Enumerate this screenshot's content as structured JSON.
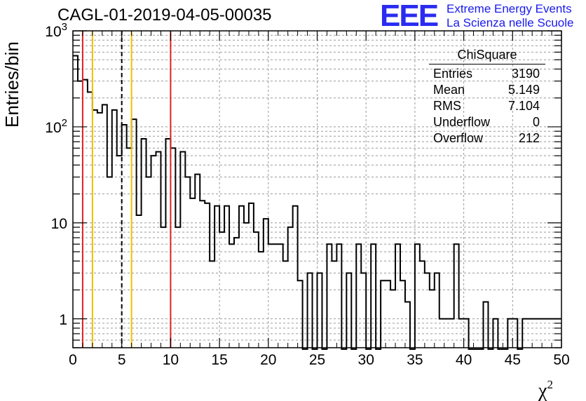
{
  "chart_data": {
    "type": "histogram",
    "title": "CAGL-01-2019-04-05-00035",
    "ylabel": "Entries/bin",
    "xlabel": "χ",
    "xlabel_sup": "2",
    "xlim": [
      0,
      50
    ],
    "ylim": [
      0.5,
      1000
    ],
    "y_scale": "log",
    "grid": true,
    "bin_width": 0.5,
    "bin_start": 0,
    "x_ticks": [
      "0",
      "5",
      "10",
      "15",
      "20",
      "25",
      "30",
      "35",
      "40",
      "45",
      "50"
    ],
    "y_ticks": [
      "1",
      "10",
      "10²",
      "10³"
    ],
    "values": [
      550,
      300,
      310,
      230,
      150,
      140,
      170,
      30,
      150,
      50,
      105,
      60,
      120,
      12,
      75,
      30,
      50,
      55,
      9,
      75,
      60,
      9,
      55,
      30,
      18,
      32,
      17,
      16,
      4,
      15,
      8,
      15,
      6,
      7,
      15,
      10,
      16,
      8,
      5,
      11,
      6,
      6,
      6,
      4,
      9,
      15,
      2.5,
      0,
      3,
      0,
      3,
      0,
      6,
      4,
      6,
      0,
      3,
      0,
      6,
      3,
      0,
      6,
      0,
      2.5,
      2.5,
      2,
      6,
      2.5,
      1.5,
      0,
      6,
      4,
      3,
      2,
      3,
      1,
      1,
      1,
      6,
      1,
      1,
      0,
      0,
      0,
      1.5,
      0,
      1,
      0,
      0,
      1,
      1,
      0,
      1,
      1,
      1,
      1,
      1,
      1,
      1,
      1
    ],
    "vertical_lines": [
      {
        "x": 1,
        "color": "#dd2222",
        "style": "solid"
      },
      {
        "x": 2,
        "color": "#ecc100",
        "style": "solid"
      },
      {
        "x": 5,
        "color": "#000000",
        "style": "dashed"
      },
      {
        "x": 6,
        "color": "#ecc100",
        "style": "solid"
      },
      {
        "x": 10,
        "color": "#dd2222",
        "style": "solid"
      }
    ]
  },
  "stats_box": {
    "title": "ChiSquare",
    "rows": [
      {
        "label": "Entries",
        "value": "3190"
      },
      {
        "label": "Mean",
        "value": "5.149"
      },
      {
        "label": "RMS",
        "value": "7.104"
      },
      {
        "label": "Underflow",
        "value": "0"
      },
      {
        "label": "Overflow",
        "value": "212"
      }
    ]
  },
  "logo": {
    "mark": "EEE",
    "line1": "Extreme Energy Events",
    "line2": "La Scienza nelle Scuole",
    "color": "#2a2cf2"
  }
}
